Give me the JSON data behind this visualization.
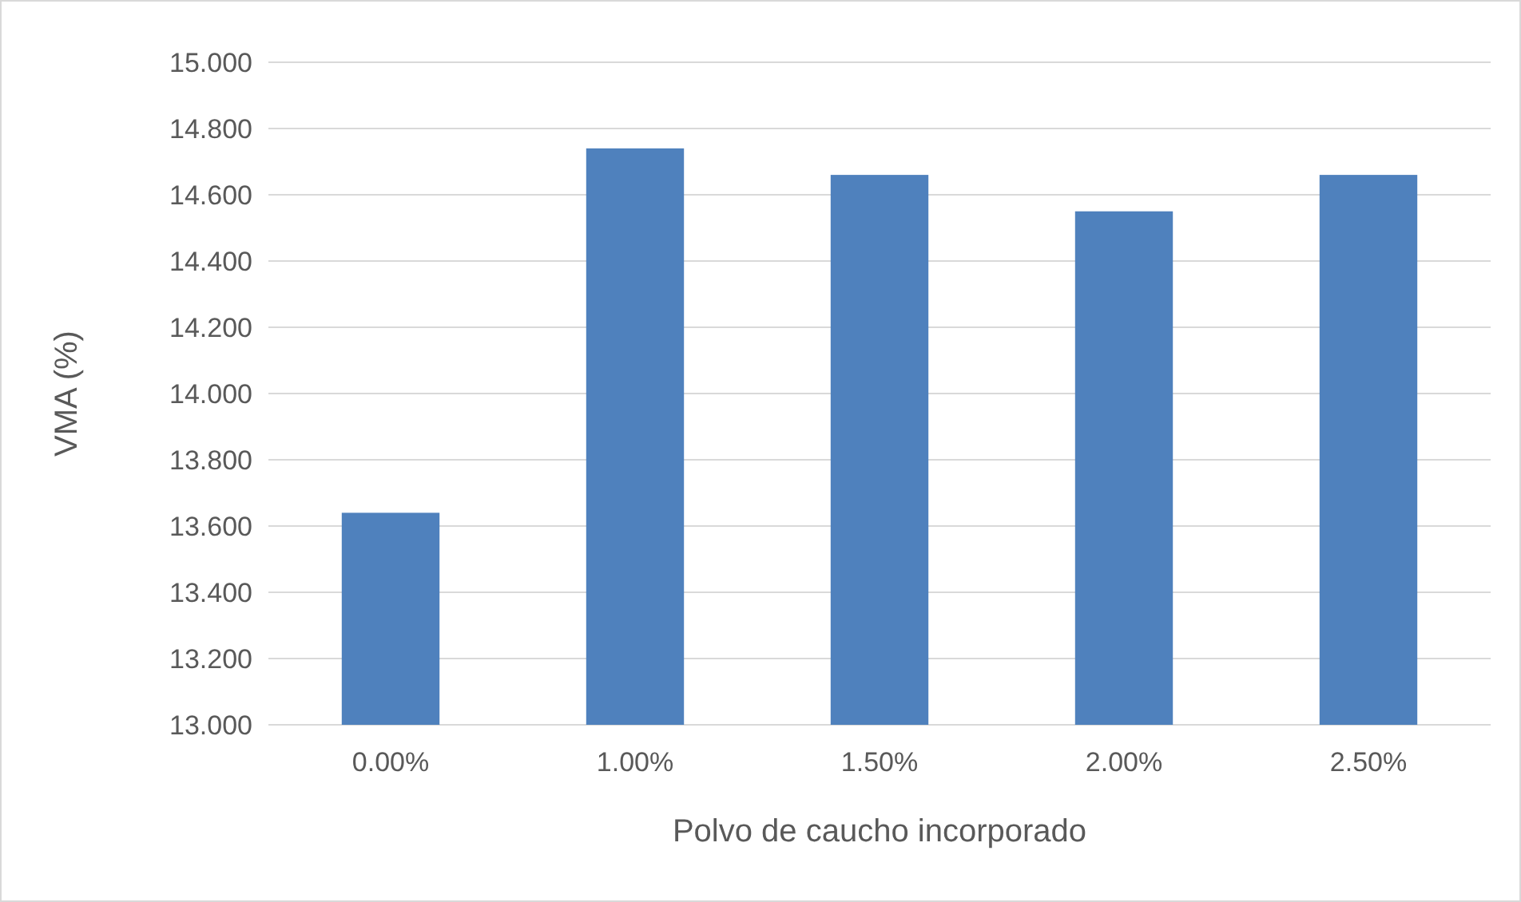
{
  "chart_data": {
    "type": "bar",
    "xlabel": "Polvo de caucho incorporado",
    "ylabel": "VMA (%)",
    "categories": [
      "0.00%",
      "1.00%",
      "1.50%",
      "2.00%",
      "2.50%"
    ],
    "values": [
      13.64,
      14.74,
      14.66,
      14.55,
      14.66
    ],
    "color": "#4f81bd",
    "ylim": [
      13,
      15
    ],
    "yticks": [
      {
        "value": 13,
        "label": "13.000"
      },
      {
        "value": 13.2,
        "label": "13.200"
      },
      {
        "value": 13.4,
        "label": "13.400"
      },
      {
        "value": 13.6,
        "label": "13.600"
      },
      {
        "value": 13.8,
        "label": "13.800"
      },
      {
        "value": 14,
        "label": "14.000"
      },
      {
        "value": 14.2,
        "label": "14.200"
      },
      {
        "value": 14.4,
        "label": "14.400"
      },
      {
        "value": 14.6,
        "label": "14.600"
      },
      {
        "value": 14.8,
        "label": "14.800"
      },
      {
        "value": 15,
        "label": "15.000"
      }
    ],
    "grid": "y"
  }
}
